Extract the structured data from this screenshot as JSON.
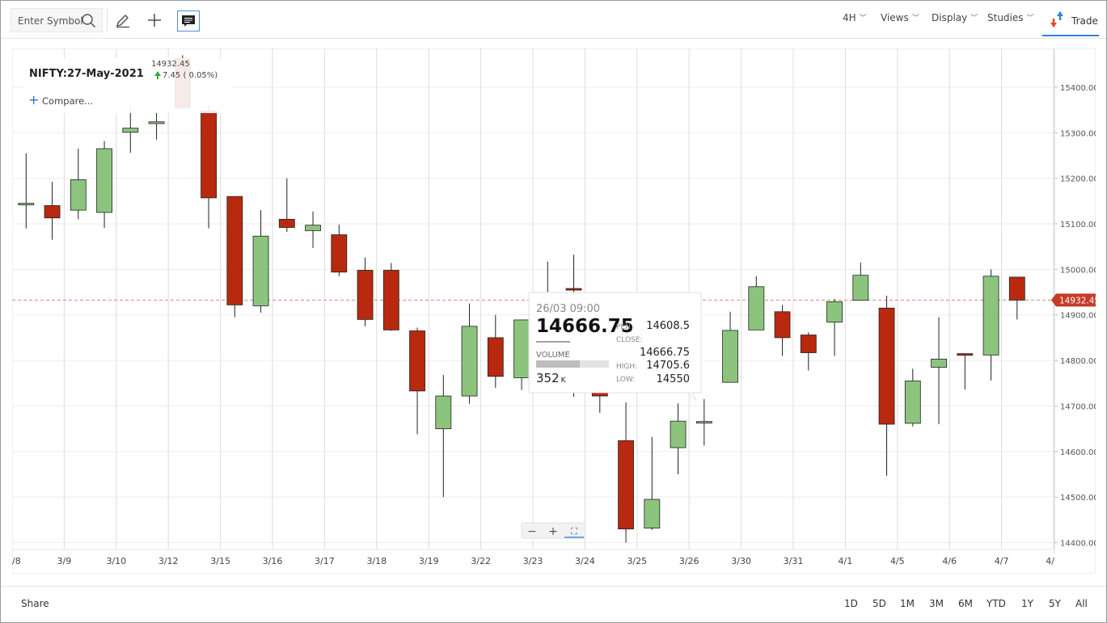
{
  "toolbar": {
    "search_placeholder": "Enter Symbol",
    "menus": [
      {
        "label": "4H"
      },
      {
        "label": "Views"
      },
      {
        "label": "Display"
      },
      {
        "label": "Studies"
      }
    ],
    "trade_label": "Trade"
  },
  "chart": {
    "symbol": "NIFTY:27-May-2021",
    "last_price": "14932.45",
    "change": "7.45 ( 0.05%)",
    "compare_label": "Compare...",
    "price_badge": "14932.45",
    "colors": {
      "up": "#8cc47e",
      "down": "#b8290f",
      "last_line": "#d98a76",
      "badge": "#c63b27"
    }
  },
  "chart_data": {
    "type": "candlestick",
    "x_labels": [
      "/8",
      "3/9",
      "3/10",
      "3/12",
      "3/15",
      "3/16",
      "3/17",
      "3/18",
      "3/19",
      "3/22",
      "3/23",
      "3/24",
      "3/25",
      "3/26",
      "3/30",
      "3/31",
      "4/1",
      "4/5",
      "4/6",
      "4/7",
      "4/"
    ],
    "y_ticks": [
      "15400.00",
      "15300.00",
      "15200.00",
      "15100.00",
      "15000.00",
      "14900.00",
      "14800.00",
      "14700.00",
      "14600.00",
      "14500.00",
      "14400.00"
    ],
    "ylim": [
      14385,
      15485
    ],
    "last_value": 14932.45,
    "candles": [
      {
        "o": 15143,
        "h": 15255,
        "l": 15090,
        "c": 15145
      },
      {
        "o": 15140,
        "h": 15192,
        "l": 15065,
        "c": 15113
      },
      {
        "o": 15130,
        "h": 15265,
        "l": 15110,
        "c": 15197
      },
      {
        "o": 15125,
        "h": 15282,
        "l": 15091,
        "c": 15265
      },
      {
        "o": 15301,
        "h": 15358,
        "l": 15256,
        "c": 15310
      },
      {
        "o": 15320,
        "h": 15348,
        "l": 15285,
        "c": 15324
      },
      {
        "o": 15463,
        "h": 15470,
        "l": 15350,
        "c": 15355
      },
      {
        "o": 15348,
        "h": 15360,
        "l": 15090,
        "c": 15157
      },
      {
        "o": 15160,
        "h": 15160,
        "l": 14895,
        "c": 14922
      },
      {
        "o": 14920,
        "h": 15130,
        "l": 14905,
        "c": 15073
      },
      {
        "o": 15110,
        "h": 15200,
        "l": 15082,
        "c": 15092
      },
      {
        "o": 15085,
        "h": 15127,
        "l": 15047,
        "c": 15097
      },
      {
        "o": 15076,
        "h": 15098,
        "l": 14985,
        "c": 14994
      },
      {
        "o": 14998,
        "h": 15026,
        "l": 14875,
        "c": 14890
      },
      {
        "o": 14998,
        "h": 15014,
        "l": 14865,
        "c": 14867
      },
      {
        "o": 14865,
        "h": 14872,
        "l": 14638,
        "c": 14733
      },
      {
        "o": 14650,
        "h": 14768,
        "l": 14500,
        "c": 14722
      },
      {
        "o": 14722,
        "h": 14925,
        "l": 14705,
        "c": 14875
      },
      {
        "o": 14850,
        "h": 14900,
        "l": 14740,
        "c": 14765
      },
      {
        "o": 14762,
        "h": 14890,
        "l": 14735,
        "c": 14889
      },
      {
        "o": 14942,
        "h": 15017,
        "l": 14920,
        "c": 14948
      },
      {
        "o": 14958,
        "h": 15032,
        "l": 14720,
        "c": 14955
      },
      {
        "o": 14764,
        "h": 14850,
        "l": 14685,
        "c": 14722
      },
      {
        "o": 14624,
        "h": 14708,
        "l": 14400,
        "c": 14430
      },
      {
        "o": 14432,
        "h": 14632,
        "l": 14428,
        "c": 14495
      },
      {
        "o": 14608.5,
        "h": 14705.6,
        "l": 14550,
        "c": 14666.75
      },
      {
        "o": 14665,
        "h": 14715,
        "l": 14613,
        "c": 14666
      },
      {
        "o": 14752,
        "h": 14907,
        "l": 14752,
        "c": 14866
      },
      {
        "o": 14867,
        "h": 14985,
        "l": 14867,
        "c": 14962
      },
      {
        "o": 14907,
        "h": 14922,
        "l": 14810,
        "c": 14850
      },
      {
        "o": 14856,
        "h": 14862,
        "l": 14778,
        "c": 14817
      },
      {
        "o": 14884,
        "h": 14935,
        "l": 14810,
        "c": 14929
      },
      {
        "o": 14932,
        "h": 15015,
        "l": 14932,
        "c": 14987
      },
      {
        "o": 14915,
        "h": 14942,
        "l": 14547,
        "c": 14660
      },
      {
        "o": 14662,
        "h": 14782,
        "l": 14655,
        "c": 14755
      },
      {
        "o": 14785,
        "h": 14895,
        "l": 14660,
        "c": 14803
      },
      {
        "o": 14815,
        "h": 14815,
        "l": 14736,
        "c": 14812
      },
      {
        "o": 14812,
        "h": 15000,
        "l": 14756,
        "c": 14985
      },
      {
        "o": 14983,
        "h": 14983,
        "l": 14890,
        "c": 14932.45
      }
    ]
  },
  "tooltip": {
    "datetime": "26/03 09:00",
    "price": "14666.75",
    "volume_label": "VOLUME",
    "volume_value": "352",
    "volume_unit": "K",
    "volume_fraction": 0.6,
    "open_label": "PEN:",
    "open_value": "14608.5",
    "close_label": "CLOSE:",
    "close_value": "14666.75",
    "high_label": "HIGH:",
    "high_value": "14705.6",
    "low_label": "LOW:",
    "low_value": "14550"
  },
  "zoom": {
    "minus": "−",
    "plus": "+",
    "fit": "⛶"
  },
  "bottom": {
    "share_label": "Share",
    "ranges": [
      "1D",
      "5D",
      "1M",
      "3M",
      "6M",
      "YTD",
      "1Y",
      "5Y",
      "All"
    ]
  }
}
